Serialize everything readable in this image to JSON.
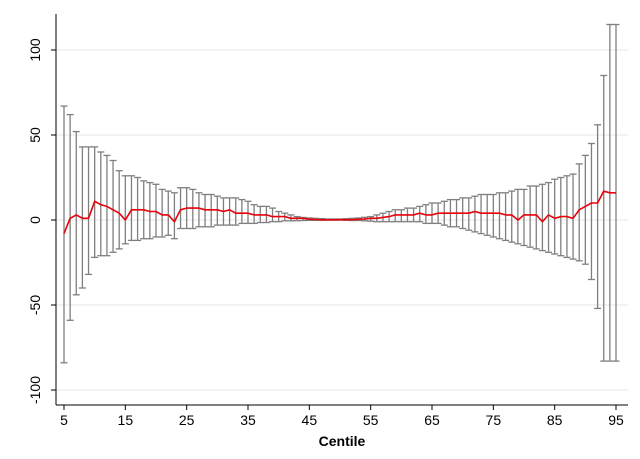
{
  "chart_data": {
    "type": "line",
    "title": "",
    "xlabel": "Centile",
    "ylabel": "",
    "xlim": [
      4,
      96
    ],
    "ylim": [
      -105,
      120
    ],
    "x_ticks": [
      5,
      15,
      25,
      35,
      45,
      55,
      65,
      75,
      85,
      95
    ],
    "y_ticks": [
      -100,
      -50,
      0,
      50,
      100
    ],
    "y_tick_labels": [
      "-100",
      "-50",
      "0",
      "50",
      "100"
    ],
    "grid": "horizontal",
    "legend": "none",
    "x": [
      5,
      6,
      7,
      8,
      9,
      10,
      11,
      12,
      13,
      14,
      15,
      16,
      17,
      18,
      19,
      20,
      21,
      22,
      23,
      24,
      25,
      26,
      27,
      28,
      29,
      30,
      31,
      32,
      33,
      34,
      35,
      36,
      37,
      38,
      39,
      40,
      41,
      42,
      43,
      44,
      45,
      46,
      47,
      48,
      49,
      50,
      51,
      52,
      53,
      54,
      55,
      56,
      57,
      58,
      59,
      60,
      61,
      62,
      63,
      64,
      65,
      66,
      67,
      68,
      69,
      70,
      71,
      72,
      73,
      74,
      75,
      76,
      77,
      78,
      79,
      80,
      81,
      82,
      83,
      84,
      85,
      86,
      87,
      88,
      89,
      90,
      91,
      92,
      93,
      94,
      95
    ],
    "series": [
      {
        "name": "",
        "color": "#e8000b",
        "values": [
          -8,
          1,
          3,
          1,
          1,
          11,
          9,
          8,
          6,
          4,
          0,
          6,
          6,
          6,
          5,
          5,
          3,
          3,
          -1,
          6,
          7,
          7,
          7,
          6,
          6,
          6,
          5,
          6,
          4,
          4,
          4,
          3,
          3,
          3,
          2,
          2,
          2,
          1,
          1,
          1,
          0.5,
          0.3,
          0.2,
          0.1,
          0.1,
          0.2,
          0.2,
          0.2,
          0.4,
          0.6,
          1,
          1,
          1.5,
          2,
          3,
          3,
          3,
          3,
          4,
          3,
          3,
          4,
          4,
          4,
          4,
          4,
          4,
          5,
          4,
          4,
          4,
          4,
          3,
          3,
          0,
          3,
          3,
          3,
          -1,
          3,
          1,
          2,
          2,
          1,
          6,
          8,
          10,
          10,
          17,
          16,
          16
        ]
      }
    ],
    "error_bars": {
      "color": "#7f7f7f",
      "upper": [
        67,
        62,
        52,
        43,
        43,
        43,
        40,
        38,
        35,
        29,
        26,
        26,
        25,
        23,
        22,
        21,
        18,
        17,
        16,
        19,
        19,
        18,
        16,
        15,
        15,
        14,
        13,
        13,
        13,
        12,
        11,
        9,
        8,
        8,
        7,
        5,
        4,
        3,
        2,
        1.5,
        1.2,
        1,
        0.8,
        0.6,
        0.6,
        0.6,
        0.8,
        1,
        1.2,
        1.6,
        2,
        3,
        4,
        5,
        6,
        6,
        7,
        7,
        8,
        9,
        10,
        10,
        11,
        12,
        12,
        13,
        13,
        14,
        15,
        15,
        15,
        16,
        16,
        17,
        18,
        18,
        20,
        20,
        21,
        22,
        24,
        25,
        26,
        27,
        33,
        38,
        45,
        56,
        85,
        115,
        115
      ],
      "lower": [
        -84,
        -59,
        -44,
        -40,
        -32,
        -22,
        -21,
        -21,
        -19,
        -17,
        -14,
        -12,
        -12,
        -11,
        -11,
        -10,
        -10,
        -9,
        -11,
        -5,
        -5,
        -5,
        -4,
        -4,
        -4,
        -3,
        -3,
        -3,
        -3,
        -2,
        -2,
        -2,
        -1.5,
        -1.5,
        -1,
        -1,
        -0.5,
        -0.5,
        -0.4,
        -0.3,
        -0.2,
        -0.2,
        -0.2,
        -0.1,
        -0.1,
        -0.1,
        -0.2,
        -0.3,
        -0.3,
        -0.5,
        -0.7,
        -1,
        -1,
        -1,
        -1,
        -1,
        -1,
        -1,
        -1,
        -2,
        -2,
        -2,
        -3,
        -4,
        -4,
        -5,
        -6,
        -7,
        -8,
        -9,
        -10,
        -11,
        -12,
        -13,
        -14,
        -15,
        -16,
        -17,
        -18,
        -19,
        -20,
        -21,
        -22,
        -23,
        -24,
        -26,
        -35,
        -52,
        -83,
        -83,
        -83
      ]
    }
  }
}
